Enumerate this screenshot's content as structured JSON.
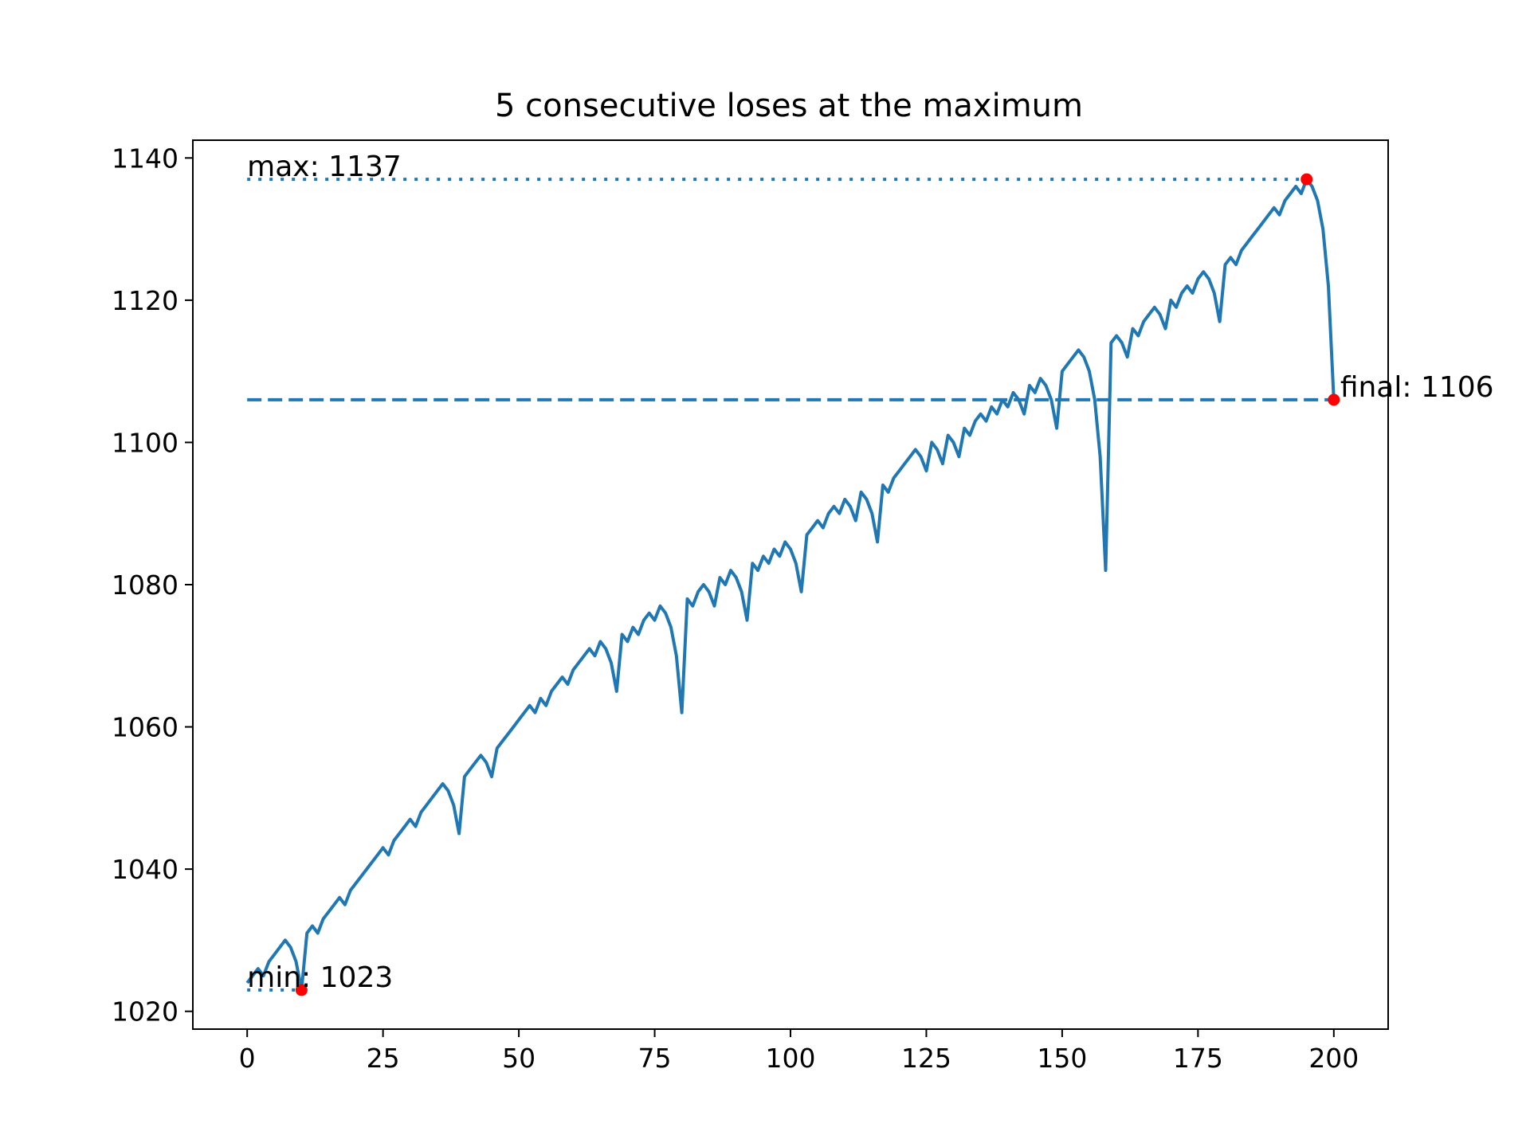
{
  "chart_data": {
    "type": "line",
    "title": "5 consecutive loses at the maximum",
    "xlabel": "",
    "ylabel": "",
    "xlim": [
      -10,
      210
    ],
    "ylim": [
      1017.5,
      1142.5
    ],
    "x_ticks": [
      0,
      25,
      50,
      75,
      100,
      125,
      150,
      175,
      200
    ],
    "y_ticks": [
      1020,
      1040,
      1060,
      1080,
      1100,
      1120,
      1140
    ],
    "grid": false,
    "legend": "none",
    "colors": {
      "line": "#1f77b4",
      "marker": "#ff0000",
      "axis": "#000000"
    },
    "series": [
      {
        "x": [
          0,
          1,
          2,
          3,
          4,
          5,
          6,
          7,
          8,
          9,
          10,
          11,
          12,
          13,
          14,
          15,
          16,
          17,
          18,
          19,
          20,
          21,
          22,
          23,
          24,
          25,
          26,
          27,
          28,
          29,
          30,
          31,
          32,
          33,
          34,
          35,
          36,
          37,
          38,
          39,
          40,
          41,
          42,
          43,
          44,
          45,
          46,
          47,
          48,
          49,
          50,
          51,
          52,
          53,
          54,
          55,
          56,
          57,
          58,
          59,
          60,
          61,
          62,
          63,
          64,
          65,
          66,
          67,
          68,
          69,
          70,
          71,
          72,
          73,
          74,
          75,
          76,
          77,
          78,
          79,
          80,
          81,
          82,
          83,
          84,
          85,
          86,
          87,
          88,
          89,
          90,
          91,
          92,
          93,
          94,
          95,
          96,
          97,
          98,
          99,
          100,
          101,
          102,
          103,
          104,
          105,
          106,
          107,
          108,
          109,
          110,
          111,
          112,
          113,
          114,
          115,
          116,
          117,
          118,
          119,
          120,
          121,
          122,
          123,
          124,
          125,
          126,
          127,
          128,
          129,
          130,
          131,
          132,
          133,
          134,
          135,
          136,
          137,
          138,
          139,
          140,
          141,
          142,
          143,
          144,
          145,
          146,
          147,
          148,
          149,
          150,
          151,
          152,
          153,
          154,
          155,
          156,
          157,
          158,
          159,
          160,
          161,
          162,
          163,
          164,
          165,
          166,
          167,
          168,
          169,
          170,
          171,
          172,
          173,
          174,
          175,
          176,
          177,
          178,
          179,
          180,
          181,
          182,
          183,
          184,
          185,
          186,
          187,
          188,
          189,
          190,
          191,
          192,
          193,
          194,
          195,
          196,
          197,
          198,
          199,
          200
        ],
        "values": [
          1024,
          1025,
          1026,
          1025,
          1027,
          1028,
          1029,
          1030,
          1029,
          1027,
          1023,
          1031,
          1032,
          1031,
          1033,
          1034,
          1035,
          1036,
          1035,
          1037,
          1038,
          1039,
          1040,
          1041,
          1042,
          1043,
          1042,
          1044,
          1045,
          1046,
          1047,
          1046,
          1048,
          1049,
          1050,
          1051,
          1052,
          1051,
          1049,
          1045,
          1053,
          1054,
          1055,
          1056,
          1055,
          1053,
          1057,
          1058,
          1059,
          1060,
          1061,
          1062,
          1063,
          1062,
          1064,
          1063,
          1065,
          1066,
          1067,
          1066,
          1068,
          1069,
          1070,
          1071,
          1070,
          1072,
          1071,
          1069,
          1065,
          1073,
          1072,
          1074,
          1073,
          1075,
          1076,
          1075,
          1077,
          1076,
          1074,
          1070,
          1062,
          1078,
          1077,
          1079,
          1080,
          1079,
          1077,
          1081,
          1080,
          1082,
          1081,
          1079,
          1075,
          1083,
          1082,
          1084,
          1083,
          1085,
          1084,
          1086,
          1085,
          1083,
          1079,
          1087,
          1088,
          1089,
          1088,
          1090,
          1091,
          1090,
          1092,
          1091,
          1089,
          1093,
          1092,
          1090,
          1086,
          1094,
          1093,
          1095,
          1096,
          1097,
          1098,
          1099,
          1098,
          1096,
          1100,
          1099,
          1097,
          1101,
          1100,
          1098,
          1102,
          1101,
          1103,
          1104,
          1103,
          1105,
          1104,
          1106,
          1105,
          1107,
          1106,
          1104,
          1108,
          1107,
          1109,
          1108,
          1106,
          1102,
          1110,
          1111,
          1112,
          1113,
          1112,
          1110,
          1106,
          1098,
          1082,
          1114,
          1115,
          1114,
          1112,
          1116,
          1115,
          1117,
          1118,
          1119,
          1118,
          1116,
          1120,
          1119,
          1121,
          1122,
          1121,
          1123,
          1124,
          1123,
          1121,
          1117,
          1125,
          1126,
          1125,
          1127,
          1128,
          1129,
          1130,
          1131,
          1132,
          1133,
          1132,
          1134,
          1135,
          1136,
          1135,
          1137,
          1136,
          1134,
          1130,
          1122,
          1106
        ]
      }
    ],
    "reference_lines": [
      {
        "y": 1137,
        "style": "dotted",
        "from_x": 0,
        "to_x": 195
      },
      {
        "y": 1106,
        "style": "dashed",
        "from_x": 0,
        "to_x": 200
      },
      {
        "y": 1023,
        "style": "dotted",
        "from_x": 0,
        "to_x": 10
      }
    ],
    "markers": [
      {
        "x": 195,
        "y": 1137
      },
      {
        "x": 10,
        "y": 1023
      },
      {
        "x": 200,
        "y": 1106
      }
    ],
    "annotations": [
      {
        "text": "max: 1137",
        "x": 0,
        "y": 1137
      },
      {
        "text": "min: 1023",
        "x": 0,
        "y": 1023
      },
      {
        "text": "final: 1106",
        "x": 200,
        "y": 1106
      }
    ]
  }
}
